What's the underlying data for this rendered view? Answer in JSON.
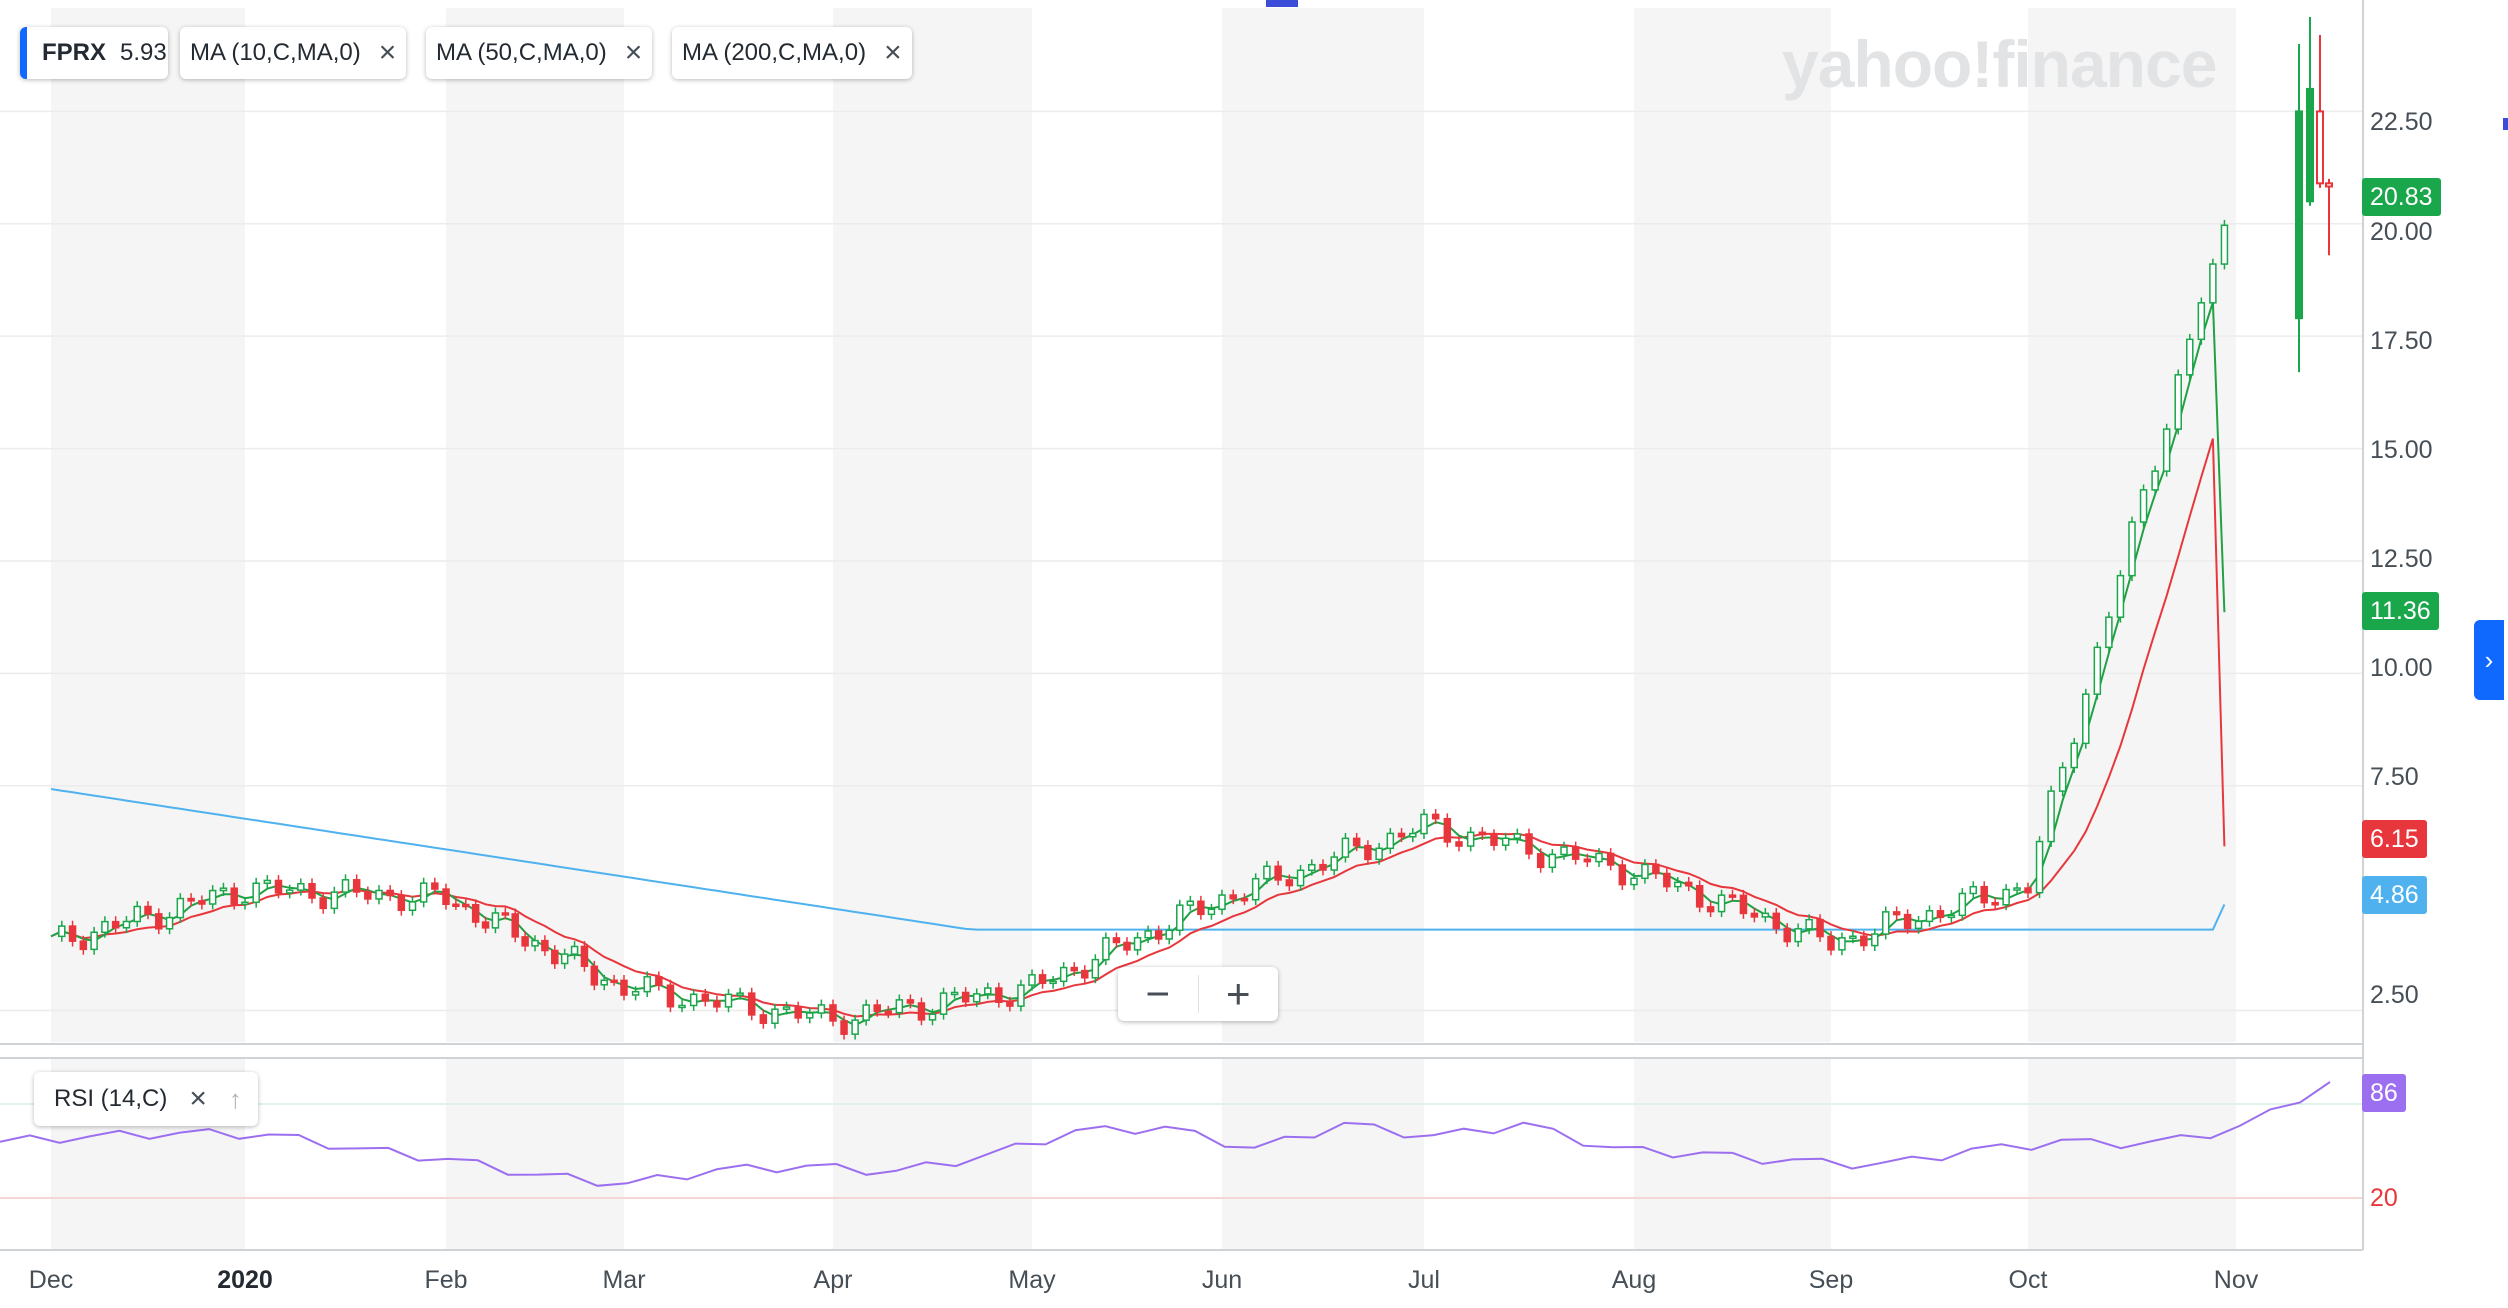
{
  "chart_data": [
    {
      "type": "candlestick",
      "title": "",
      "symbol": "FPRX",
      "x_categories": [
        "Dec",
        "2020",
        "Feb",
        "Mar",
        "Apr",
        "May",
        "Jun",
        "Jul",
        "Aug",
        "Sep",
        "Oct",
        "Nov"
      ],
      "yticks": [
        "2.50",
        "7.50",
        "10.00",
        "12.50",
        "15.00",
        "17.50",
        "20.00",
        "22.50"
      ],
      "ylim": [
        1.8,
        24.8
      ],
      "grid": true,
      "series": [
        {
          "name": "FPRX",
          "kind": "price",
          "months": [
            "Dec",
            "Jan",
            "Feb",
            "Mar",
            "Apr",
            "May",
            "Jun",
            "Jul",
            "Aug",
            "Sep",
            "Oct",
            "Nov"
          ],
          "approx_close": [
            4.0,
            5.2,
            5.0,
            3.0,
            2.3,
            3.0,
            5.0,
            6.6,
            5.6,
            4.0,
            5.3,
            20.83
          ],
          "last": 20.83
        },
        {
          "name": "MA (10,C,MA,0)",
          "value": 11.36
        },
        {
          "name": "MA (50,C,MA,0)",
          "value": 6.15
        },
        {
          "name": "MA (200,C,MA,0)",
          "value": 4.86
        }
      ]
    },
    {
      "type": "line",
      "title": "RSI (14,C)",
      "yticks": [
        "20"
      ],
      "last": 86,
      "approx_values": [
        52,
        55,
        57,
        56,
        48,
        42,
        33,
        28,
        36,
        38,
        35,
        44,
        58,
        60,
        48,
        62,
        55,
        62,
        48,
        45,
        41,
        39,
        47,
        52,
        51,
        60,
        86
      ]
    }
  ],
  "legend": {
    "symbol": "FPRX",
    "price": "5.93",
    "ma10": "MA (10,C,MA,0)",
    "ma50": "MA (50,C,MA,0)",
    "ma200": "MA (200,C,MA,0)",
    "rsi": "RSI (14,C)"
  },
  "icons": {
    "close": "close-icon",
    "move_up": "arrow-up-icon",
    "zoom_out": "minus-icon",
    "zoom_in": "plus-icon",
    "expand": "chevron-right-icon"
  },
  "zoom": {
    "minus": "−",
    "plus": "+"
  },
  "logo": "yahoo!finance",
  "badges": {
    "price": "20.83",
    "ma10": "11.36",
    "ma50": "6.15",
    "ma200": "4.86",
    "rsi": "86"
  },
  "colors": {
    "up": "#1aa64a",
    "down": "#e8373c",
    "ma10": "#22a044",
    "ma50": "#e8373c",
    "ma200": "#4fb2ef",
    "rsi": "#9c6ff0",
    "accent": "#0f69ff"
  }
}
